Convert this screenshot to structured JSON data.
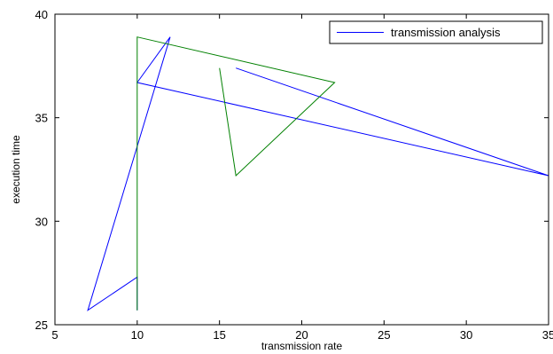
{
  "chart_data": {
    "type": "line",
    "title": "",
    "xlabel": "transmission rate",
    "ylabel": "execution time",
    "xlim": [
      5,
      35
    ],
    "ylim": [
      25,
      40
    ],
    "x_ticks": [
      5,
      10,
      15,
      20,
      25,
      30,
      35
    ],
    "y_ticks": [
      25,
      30,
      35,
      40
    ],
    "grid": false,
    "legend_position": "top-right",
    "series": [
      {
        "name": "transmission analysis",
        "color": "#0000ff",
        "x": [
          16,
          35,
          10,
          12,
          7,
          10,
          10
        ],
        "y": [
          37.4,
          32.2,
          36.7,
          38.9,
          25.7,
          27.3,
          25.7
        ]
      },
      {
        "name": "",
        "color": "#008000",
        "x": [
          15,
          16,
          22,
          10,
          10,
          10
        ],
        "y": [
          37.4,
          32.2,
          36.7,
          38.9,
          27.3,
          25.7
        ]
      }
    ]
  }
}
